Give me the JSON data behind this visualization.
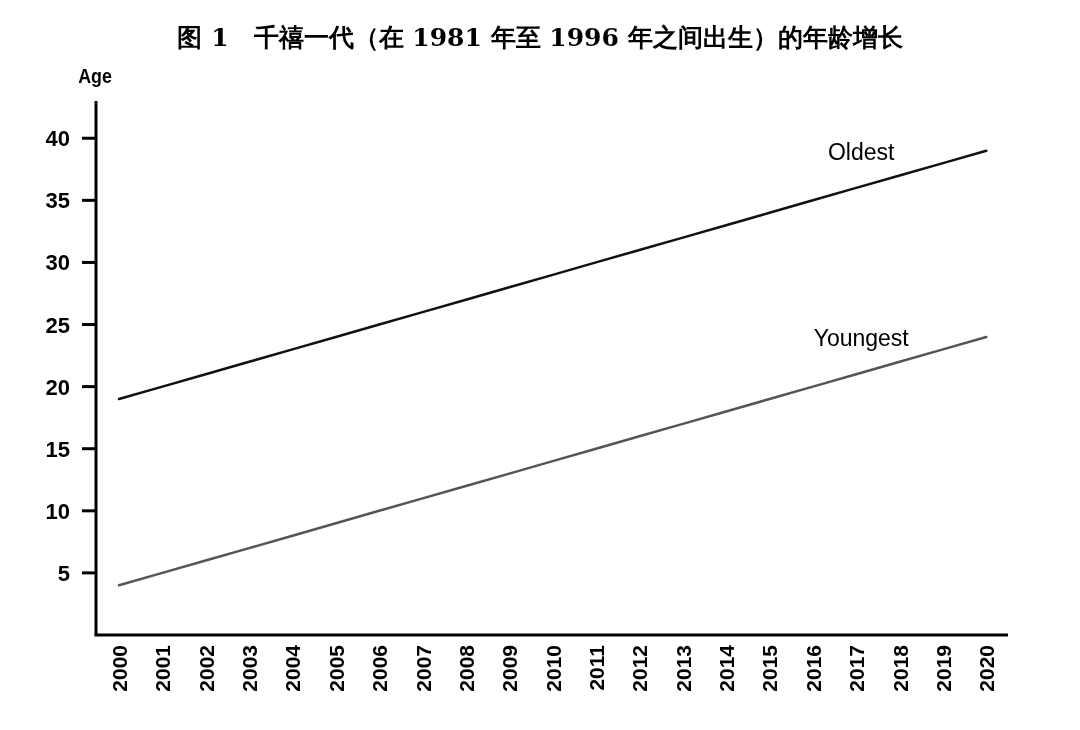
{
  "chart_data": {
    "type": "line",
    "title": "图 1　千禧一代（在 1981 年至 1996 年之间出生）的年龄增长",
    "ylabel": "Age",
    "categories": [
      "2000",
      "2001",
      "2002",
      "2003",
      "2004",
      "2005",
      "2006",
      "2007",
      "2008",
      "2009",
      "2010",
      "2011",
      "2012",
      "2013",
      "2014",
      "2015",
      "2016",
      "2017",
      "2018",
      "2019",
      "2020"
    ],
    "series": [
      {
        "name": "Oldest",
        "color": "#111111",
        "values": [
          19,
          20,
          21,
          22,
          23,
          24,
          25,
          26,
          27,
          28,
          29,
          30,
          31,
          32,
          33,
          34,
          35,
          36,
          37,
          38,
          39
        ]
      },
      {
        "name": "Youngest",
        "color": "#555555",
        "values": [
          4,
          5,
          6,
          7,
          8,
          9,
          10,
          11,
          12,
          13,
          14,
          15,
          16,
          17,
          18,
          19,
          20,
          21,
          22,
          23,
          24
        ]
      }
    ],
    "ylim": [
      0,
      43
    ],
    "yticks": [
      5,
      10,
      15,
      20,
      25,
      30,
      35,
      40
    ]
  }
}
